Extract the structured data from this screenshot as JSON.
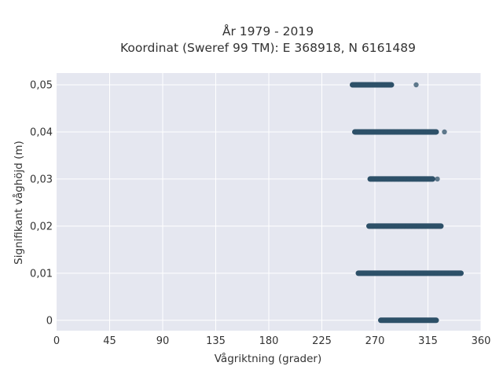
{
  "chart_data": {
    "type": "scatter",
    "title_lines": [
      "År 1979 - 2019",
      "Koordinat (Sweref 99 TM): E 368918, N 6161489"
    ],
    "xlabel": "Vågriktning (grader)",
    "ylabel": "Signifikant våghöjd (m)",
    "xlim": [
      0,
      360
    ],
    "ylim": [
      -0.0022,
      0.0525
    ],
    "xticks": [
      0,
      45,
      90,
      135,
      180,
      225,
      270,
      315,
      360
    ],
    "xtick_labels": [
      "0",
      "45",
      "90",
      "135",
      "180",
      "225",
      "270",
      "315",
      "360"
    ],
    "yticks": [
      0,
      0.01,
      0.02,
      0.03,
      0.04,
      0.05
    ],
    "ytick_labels": [
      "0",
      "0,01",
      "0,02",
      "0,03",
      "0,04",
      "0,05"
    ],
    "grid": true,
    "marker_color": "#2e5068",
    "background_color": "#e5e7f0",
    "series": [
      {
        "points": [
          {
            "y": 0.05,
            "x": [
              251,
              254,
              256,
              258,
              259,
              260,
              262,
              264,
              266,
              268,
              270,
              272,
              274,
              276,
              278,
              280,
              282,
              284,
              305
            ]
          },
          {
            "y": 0.04,
            "x": [
              253,
              256,
              259,
              262,
              265,
              268,
              271,
              274,
              277,
              280,
              283,
              286,
              289,
              292,
              295,
              298,
              301,
              304,
              307,
              310,
              313,
              315,
              317,
              319,
              322,
              329
            ]
          },
          {
            "y": 0.03,
            "x": [
              266,
              269,
              272,
              275,
              278,
              281,
              284,
              287,
              290,
              293,
              296,
              299,
              302,
              305,
              308,
              311,
              314,
              317,
              319,
              323
            ]
          },
          {
            "y": 0.02,
            "x": [
              265,
              268,
              271,
              274,
              277,
              280,
              283,
              286,
              289,
              292,
              295,
              298,
              301,
              304,
              307,
              310,
              313,
              316,
              319,
              322,
              325,
              326
            ]
          },
          {
            "y": 0.01,
            "x": [
              256,
              259,
              262,
              265,
              268,
              271,
              274,
              277,
              280,
              283,
              286,
              289,
              292,
              295,
              298,
              301,
              304,
              307,
              310,
              313,
              316,
              319,
              322,
              325,
              328,
              331,
              334,
              337,
              340,
              343
            ]
          },
          {
            "y": 0.0,
            "x": [
              275,
              278,
              281,
              284,
              287,
              290,
              292,
              294,
              296,
              298,
              300,
              302,
              305,
              308,
              311,
              314,
              317,
              320,
              322
            ]
          }
        ]
      }
    ]
  }
}
